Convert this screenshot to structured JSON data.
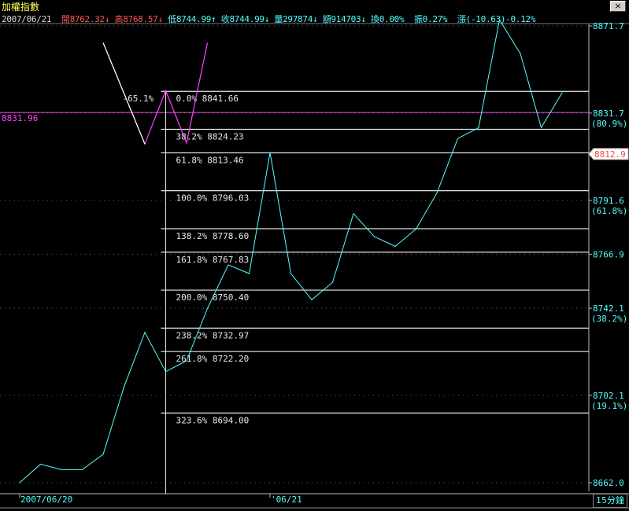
{
  "window": {
    "title": "加權指數",
    "close_label": "×"
  },
  "info": {
    "date": "2007/06/21",
    "open_label": "開",
    "open": "8762.32",
    "open_arrow": "↓",
    "high_label": "高",
    "high": "8768.57",
    "high_arrow": "↓",
    "low_label": "低",
    "low": "8744.99",
    "low_arrow": "↑",
    "close_label": "收",
    "close": "8744.99",
    "close_arrow": "↓",
    "volume_label": "量",
    "volume": "297874",
    "volume_arrow": "↓",
    "amount_label": "額",
    "amount": "914703",
    "amount_arrow": "↓",
    "turnover_label": "換",
    "turnover": "0.00%",
    "amplitude_label": "振",
    "amplitude": "0.27%",
    "change_label": "漲",
    "change": "(-10.63)-0.12%"
  },
  "period_label": "15分鐘",
  "colors": {
    "background": "#000000",
    "price_line": "#55ffff",
    "fib_line": "#e8e8e8",
    "pattern": "#ff44ff",
    "current_price": "#ff4444",
    "axis": "#cccccc"
  },
  "chart_data": {
    "type": "line",
    "ylim": [
      8657.0,
      8880.0
    ],
    "x_range": [
      0,
      28
    ],
    "series": [
      {
        "values": [
          8662.0,
          8670.5,
          8668.0,
          8668.0,
          8675.0,
          8706.0,
          8731.0,
          8713.0,
          8718.0,
          8742.0,
          8762.0,
          8758.0,
          8813.5,
          8758.0,
          8746.0,
          8754.0,
          8785.5,
          8775.0,
          8770.5,
          8778.5,
          8795.0,
          8820.0,
          8825.0,
          8874.5,
          8859.0,
          8825.0,
          8841.0
        ]
      }
    ],
    "pattern_line": [
      {
        "x": 4.0,
        "y": 8864.0
      },
      {
        "x": 6.0,
        "y": 8817.5
      },
      {
        "x": 7.0,
        "y": 8842.0
      },
      {
        "x": 8.0,
        "y": 8818.0
      },
      {
        "x": 9.0,
        "y": 8864.0
      }
    ],
    "pattern_annotation": "-65.1%",
    "pattern_annotation_pos": {
      "x": 5.0,
      "y": 8838.5
    },
    "fib_anchor_x": 7.0,
    "fib_levels": [
      {
        "label": "0.0% 8841.66",
        "value": 8841.66
      },
      {
        "label": "38.2% 8824.23",
        "value": 8824.23
      },
      {
        "label": "61.8% 8813.46",
        "value": 8813.46
      },
      {
        "label": "100.0% 8796.03",
        "value": 8796.03
      },
      {
        "label": "138.2% 8778.60",
        "value": 8778.6
      },
      {
        "label": "161.8% 8767.83",
        "value": 8767.83
      },
      {
        "label": "200.0% 8750.40",
        "value": 8750.4
      },
      {
        "label": "238.2% 8732.97",
        "value": 8732.97
      },
      {
        "label": "261.8% 8722.20",
        "value": 8722.2
      },
      {
        "label": "323.6% 8694.00",
        "value": 8694.0
      }
    ],
    "reference_line": {
      "label": "8831.96",
      "value": 8831.96
    },
    "current_price": {
      "label": "8812.9",
      "value": 8812.9
    },
    "y_ticks": [
      {
        "label": "8871.7",
        "value": 8871.7
      },
      {
        "label": "8831.7",
        "value": 8831.7,
        "pct": "(80.9%)"
      },
      {
        "label": "8791.6",
        "value": 8791.6,
        "pct": "(61.8%)"
      },
      {
        "label": "8766.9",
        "value": 8766.9
      },
      {
        "label": "8742.1",
        "value": 8742.1,
        "pct": "(38.2%)"
      },
      {
        "label": "8702.1",
        "value": 8702.1,
        "pct": "(19.1%)"
      },
      {
        "label": "8662.0",
        "value": 8662.0
      }
    ],
    "x_ticks": [
      {
        "label": "2007/06/20",
        "x": 0.0
      },
      {
        "label": "'06/21",
        "x": 12.0
      }
    ]
  }
}
